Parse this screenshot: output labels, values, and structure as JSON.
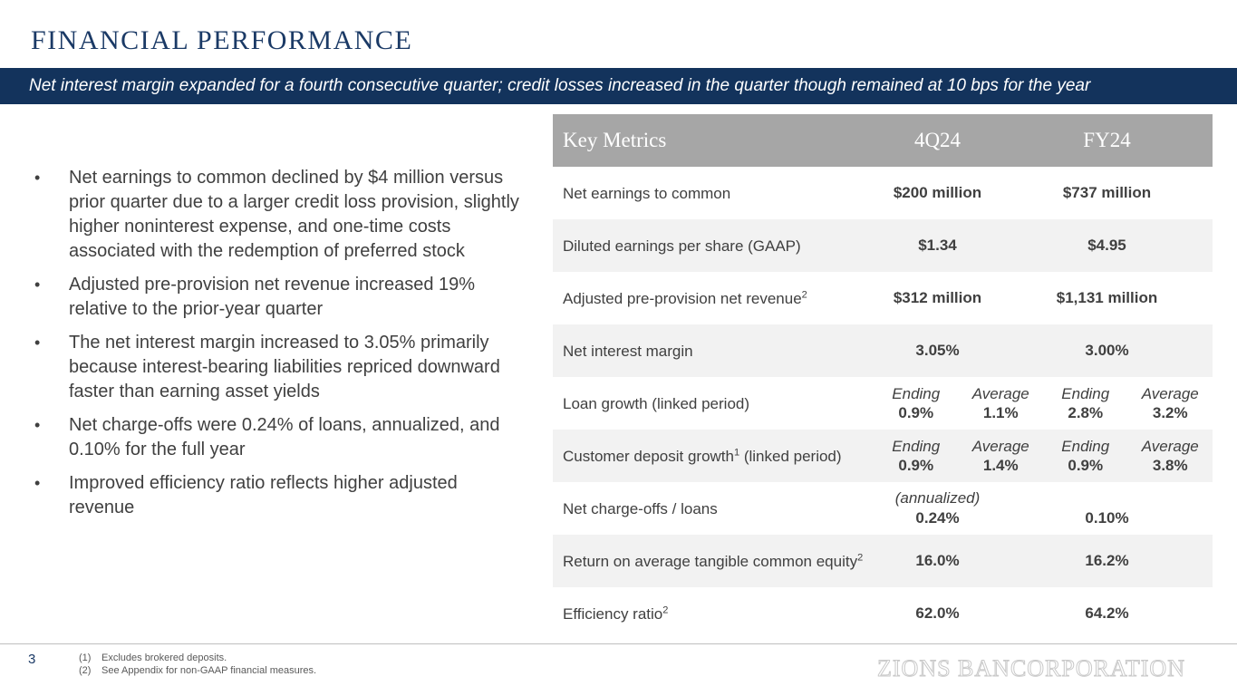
{
  "slide": {
    "title": "FINANCIAL PERFORMANCE",
    "subtitle": "Net interest margin expanded for a fourth consecutive quarter; credit losses increased in the quarter though remained at 10 bps for the year",
    "page_number": "3",
    "logo_text": "ZIONS BANCORPORATION"
  },
  "bullets": [
    "Net earnings to common declined by $4 million versus prior quarter due to a larger credit loss provision, slightly higher noninterest expense, and one-time costs associated with the redemption of preferred stock",
    "Adjusted pre-provision net revenue increased 19% relative to the prior-year quarter",
    "The net interest margin increased to 3.05% primarily because interest-bearing liabilities repriced downward faster than earning asset yields",
    "Net charge-offs were 0.24% of loans, annualized, and 0.10% for the full year",
    "Improved efficiency ratio reflects higher adjusted revenue"
  ],
  "bullet_char": "•",
  "metrics": {
    "headers": [
      "Key Metrics",
      "4Q24",
      "FY24"
    ],
    "rows": [
      {
        "label": "Net earnings to common",
        "q": "$200 million",
        "fy": "$737 million"
      },
      {
        "label": "Diluted earnings per share (GAAP)",
        "q": "$1.34",
        "fy": "$4.95"
      },
      {
        "label": "Adjusted pre-provision net revenue",
        "sup": "2",
        "q": "$312 million",
        "fy": "$1,131 million"
      },
      {
        "label": "Net interest margin",
        "q": "3.05%",
        "fy": "3.00%"
      },
      {
        "label": "Loan growth (linked period)",
        "q_end_label": "Ending",
        "q_end": "0.9%",
        "q_avg_label": "Average",
        "q_avg": "1.1%",
        "fy_end_label": "Ending",
        "fy_end": "2.8%",
        "fy_avg_label": "Average",
        "fy_avg": "3.2%"
      },
      {
        "label": "Customer deposit growth",
        "sup": "1",
        "label_suffix": " (linked period)",
        "q_end_label": "Ending",
        "q_end": "0.9%",
        "q_avg_label": "Average",
        "q_avg": "1.4%",
        "fy_end_label": "Ending",
        "fy_end": "0.9%",
        "fy_avg_label": "Average",
        "fy_avg": "3.8%"
      },
      {
        "label": "Net charge-offs / loans",
        "q_note": "(annualized)",
        "q": "0.24%",
        "fy": "0.10%"
      },
      {
        "label": "Return on average tangible common equity",
        "sup": "2",
        "q": "16.0%",
        "fy": "16.2%"
      },
      {
        "label": "Efficiency ratio",
        "sup": "2",
        "q": "62.0%",
        "fy": "64.2%"
      }
    ]
  },
  "footnotes": [
    {
      "n": "(1)",
      "text": "Excludes brokered deposits."
    },
    {
      "n": "(2)",
      "text": "See Appendix for non-GAAP financial measures."
    }
  ]
}
